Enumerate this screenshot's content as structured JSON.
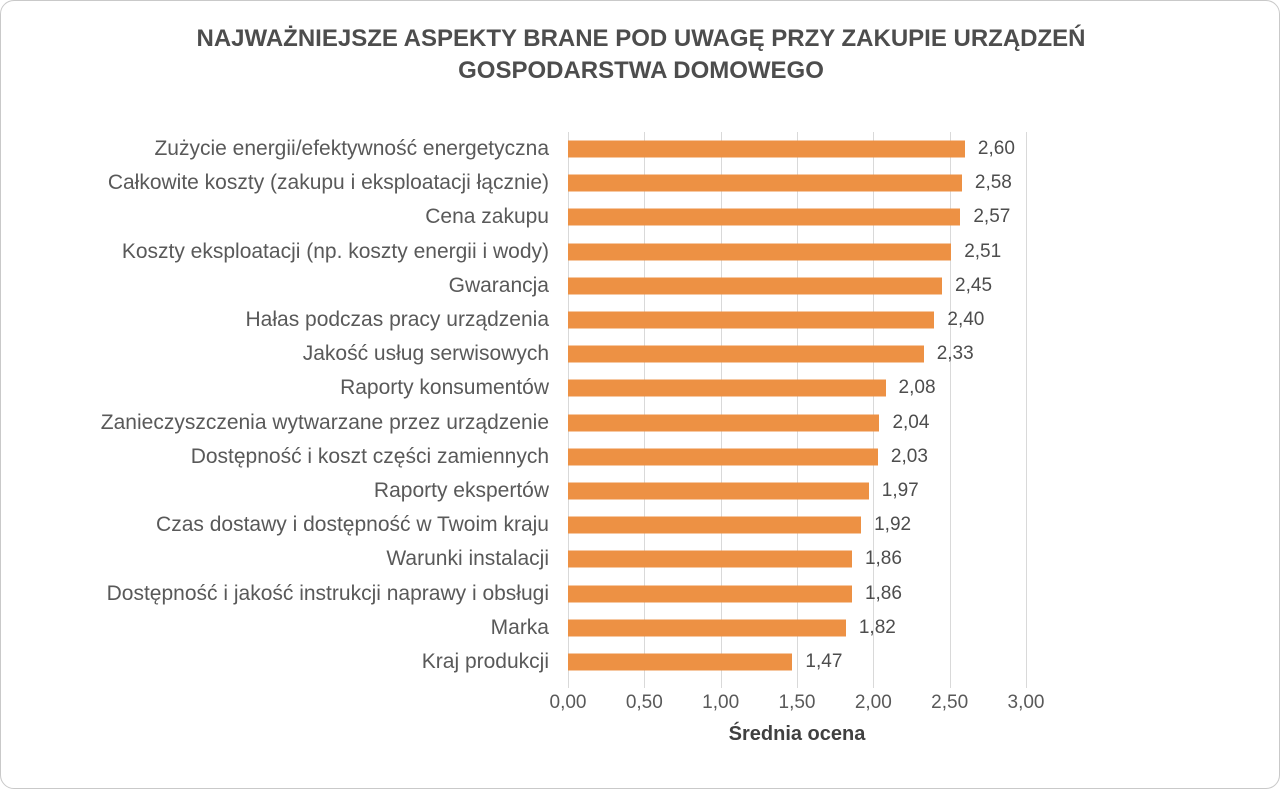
{
  "chart_data": {
    "type": "bar",
    "orientation": "horizontal",
    "title": "NAJWAŻNIEJSZE ASPEKTY BRANE POD UWAGĘ PRZY ZAKUPIE URZĄDZEŃ GOSPODARSTWA DOMOWEGO",
    "title_lines": [
      "NAJWAŻNIEJSZE ASPEKTY BRANE POD UWAGĘ PRZY ZAKUPIE URZĄDZEŃ",
      "GOSPODARSTWA DOMOWEGO"
    ],
    "xlabel": "Średnia ocena",
    "categories": [
      "Zużycie energii/efektywność energetyczna",
      "Całkowite koszty (zakupu i eksploatacji łącznie)",
      "Cena zakupu",
      "Koszty eksploatacji (np. koszty energii i wody)",
      "Gwarancja",
      "Hałas podczas pracy urządzenia",
      "Jakość usług serwisowych",
      "Raporty konsumentów",
      "Zanieczyszczenia wytwarzane przez urządzenie",
      "Dostępność i koszt części zamiennych",
      "Raporty ekspertów",
      "Czas dostawy i dostępność w Twoim kraju",
      "Warunki instalacji",
      "Dostępność i jakość instrukcji naprawy i obsługi",
      "Marka",
      "Kraj produkcji"
    ],
    "values": [
      2.6,
      2.58,
      2.57,
      2.51,
      2.45,
      2.4,
      2.33,
      2.08,
      2.04,
      2.03,
      1.97,
      1.92,
      1.86,
      1.86,
      1.82,
      1.47
    ],
    "value_labels": [
      "2,60",
      "2,58",
      "2,57",
      "2,51",
      "2,45",
      "2,40",
      "2,33",
      "2,08",
      "2,04",
      "2,03",
      "1,97",
      "1,92",
      "1,86",
      "1,86",
      "1,82",
      "1,47"
    ],
    "xlim": [
      0,
      3
    ],
    "xticks": [
      0,
      0.5,
      1,
      1.5,
      2,
      2.5,
      3
    ],
    "xtick_labels": [
      "0,00",
      "0,50",
      "1,00",
      "1,50",
      "2,00",
      "2,50",
      "3,00"
    ],
    "grid": true,
    "legend": false,
    "colors": {
      "bar": "#ed9144",
      "gridline": "#d9d9d9",
      "title_text": "#4d4d4d",
      "label_text": "#595959",
      "value_text": "#4d4d4d"
    }
  }
}
